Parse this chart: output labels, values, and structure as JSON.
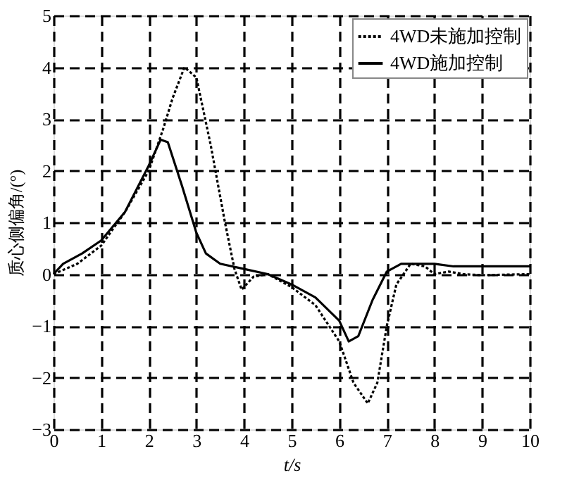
{
  "chart_data": {
    "type": "line",
    "xlabel": "t/s",
    "ylabel": "质心侧偏角/(°)",
    "xlim": [
      0,
      10
    ],
    "ylim": [
      -3,
      5
    ],
    "xticks": [
      0,
      1,
      2,
      3,
      4,
      5,
      6,
      7,
      8,
      9,
      10
    ],
    "yticks": [
      -3,
      -2,
      -1,
      0,
      1,
      2,
      3,
      4,
      5
    ],
    "grid": true,
    "legend": "top right",
    "marker": "none",
    "series": [
      {
        "name": "4WD未施加控制",
        "color": "#000000",
        "line_style": "dotted",
        "x": [
          0,
          0.5,
          1,
          1.5,
          2,
          2.3,
          2.5,
          2.75,
          3,
          3.3,
          3.6,
          3.8,
          3.95,
          4.2,
          4.5,
          5,
          5.5,
          6,
          6.3,
          6.6,
          6.8,
          7,
          7.2,
          7.5,
          7.8,
          8,
          8.3,
          8.6,
          9,
          10
        ],
        "values": [
          0,
          0.2,
          0.55,
          1.2,
          2.0,
          2.8,
          3.4,
          4.0,
          3.8,
          2.5,
          1.0,
          0.1,
          -0.3,
          -0.05,
          0,
          -0.25,
          -0.6,
          -1.3,
          -2.1,
          -2.5,
          -2.1,
          -1.0,
          -0.2,
          0.2,
          0.15,
          0,
          0.05,
          0,
          -0.02,
          0
        ]
      },
      {
        "name": "4WD施加控制",
        "color": "#000000",
        "line_style": "solid",
        "x": [
          0,
          0.2,
          0.6,
          1,
          1.5,
          2,
          2.25,
          2.4,
          2.7,
          3,
          3.2,
          3.5,
          4,
          4.5,
          5,
          5.5,
          6,
          6.2,
          6.4,
          6.7,
          7,
          7.3,
          8,
          8.4,
          10
        ],
        "values": [
          0,
          0.2,
          0.4,
          0.65,
          1.2,
          2.1,
          2.6,
          2.55,
          1.7,
          0.8,
          0.4,
          0.2,
          0.1,
          0,
          -0.2,
          -0.45,
          -0.9,
          -1.3,
          -1.2,
          -0.5,
          0.05,
          0.2,
          0.2,
          0.15,
          0.15
        ]
      }
    ]
  }
}
